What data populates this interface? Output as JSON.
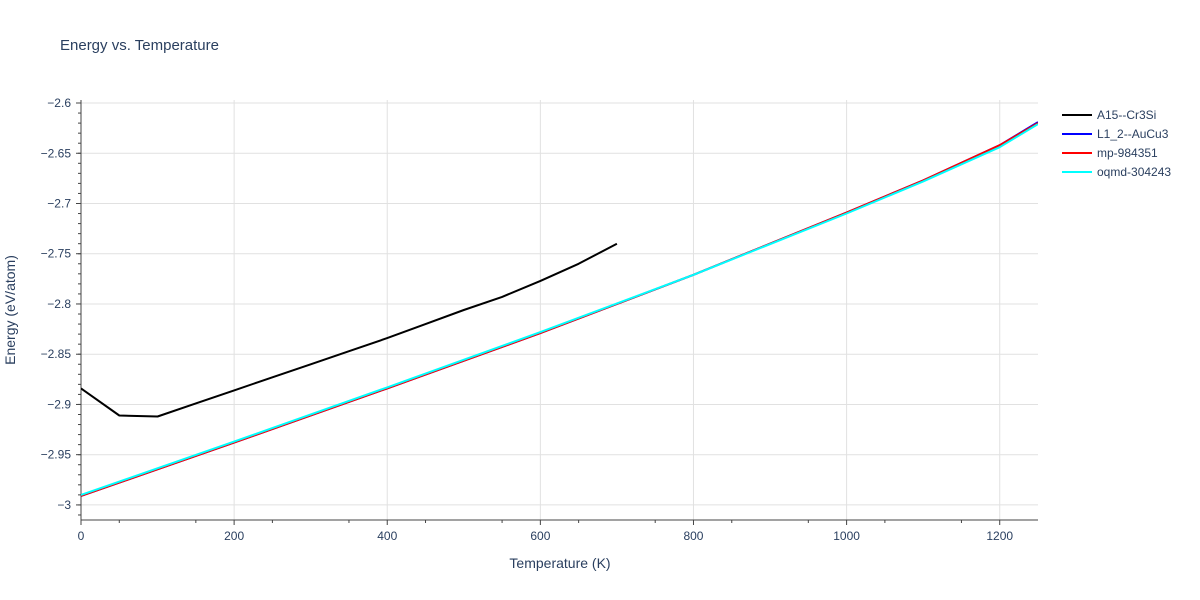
{
  "chart_data": {
    "type": "line",
    "title": "Energy vs. Temperature",
    "xlabel": "Temperature (K)",
    "ylabel": "Energy (eV/atom)",
    "xlim": [
      0,
      1250
    ],
    "ylim": [
      -3.015,
      -2.597
    ],
    "xticks": [
      0,
      200,
      400,
      600,
      800,
      1000,
      1200
    ],
    "yticks": [
      -3,
      -2.95,
      -2.9,
      -2.85,
      -2.8,
      -2.75,
      -2.7,
      -2.65,
      -2.6
    ],
    "xtick_labels": [
      "0",
      "200",
      "400",
      "600",
      "800",
      "1000",
      "1200"
    ],
    "ytick_labels": [
      "−3",
      "−2.95",
      "−2.9",
      "−2.85",
      "−2.8",
      "−2.75",
      "−2.7",
      "−2.65",
      "−2.6"
    ],
    "grid": true,
    "legend_position": "right",
    "series": [
      {
        "name": "A15--Cr3Si",
        "color": "#000000",
        "x": [
          0,
          50,
          100,
          150,
          200,
          250,
          300,
          350,
          400,
          450,
          500,
          550,
          600,
          650,
          700
        ],
        "y": [
          -2.884,
          -2.911,
          -2.912,
          -2.899,
          -2.886,
          -2.873,
          -2.86,
          -2.847,
          -2.834,
          -2.82,
          -2.806,
          -2.793,
          -2.777,
          -2.76,
          -2.74
        ]
      },
      {
        "name": "L1_2--AuCu3",
        "color": "#0000ff",
        "x": [
          0,
          200,
          400,
          600,
          800,
          1000,
          1100,
          1200,
          1250
        ],
        "y": [
          -2.991,
          -2.938,
          -2.884,
          -2.829,
          -2.771,
          -2.709,
          -2.677,
          -2.642,
          -2.619
        ]
      },
      {
        "name": "mp-984351",
        "color": "#ff0000",
        "x": [
          0,
          200,
          400,
          600,
          800,
          1000,
          1100,
          1200,
          1250
        ],
        "y": [
          -2.991,
          -2.938,
          -2.884,
          -2.829,
          -2.771,
          -2.709,
          -2.677,
          -2.642,
          -2.62
        ]
      },
      {
        "name": "oqmd-304243",
        "color": "#00ffff",
        "x": [
          0,
          200,
          400,
          600,
          800,
          1000,
          1100,
          1200,
          1250
        ],
        "y": [
          -2.99,
          -2.937,
          -2.883,
          -2.828,
          -2.771,
          -2.71,
          -2.678,
          -2.644,
          -2.621
        ]
      }
    ]
  }
}
